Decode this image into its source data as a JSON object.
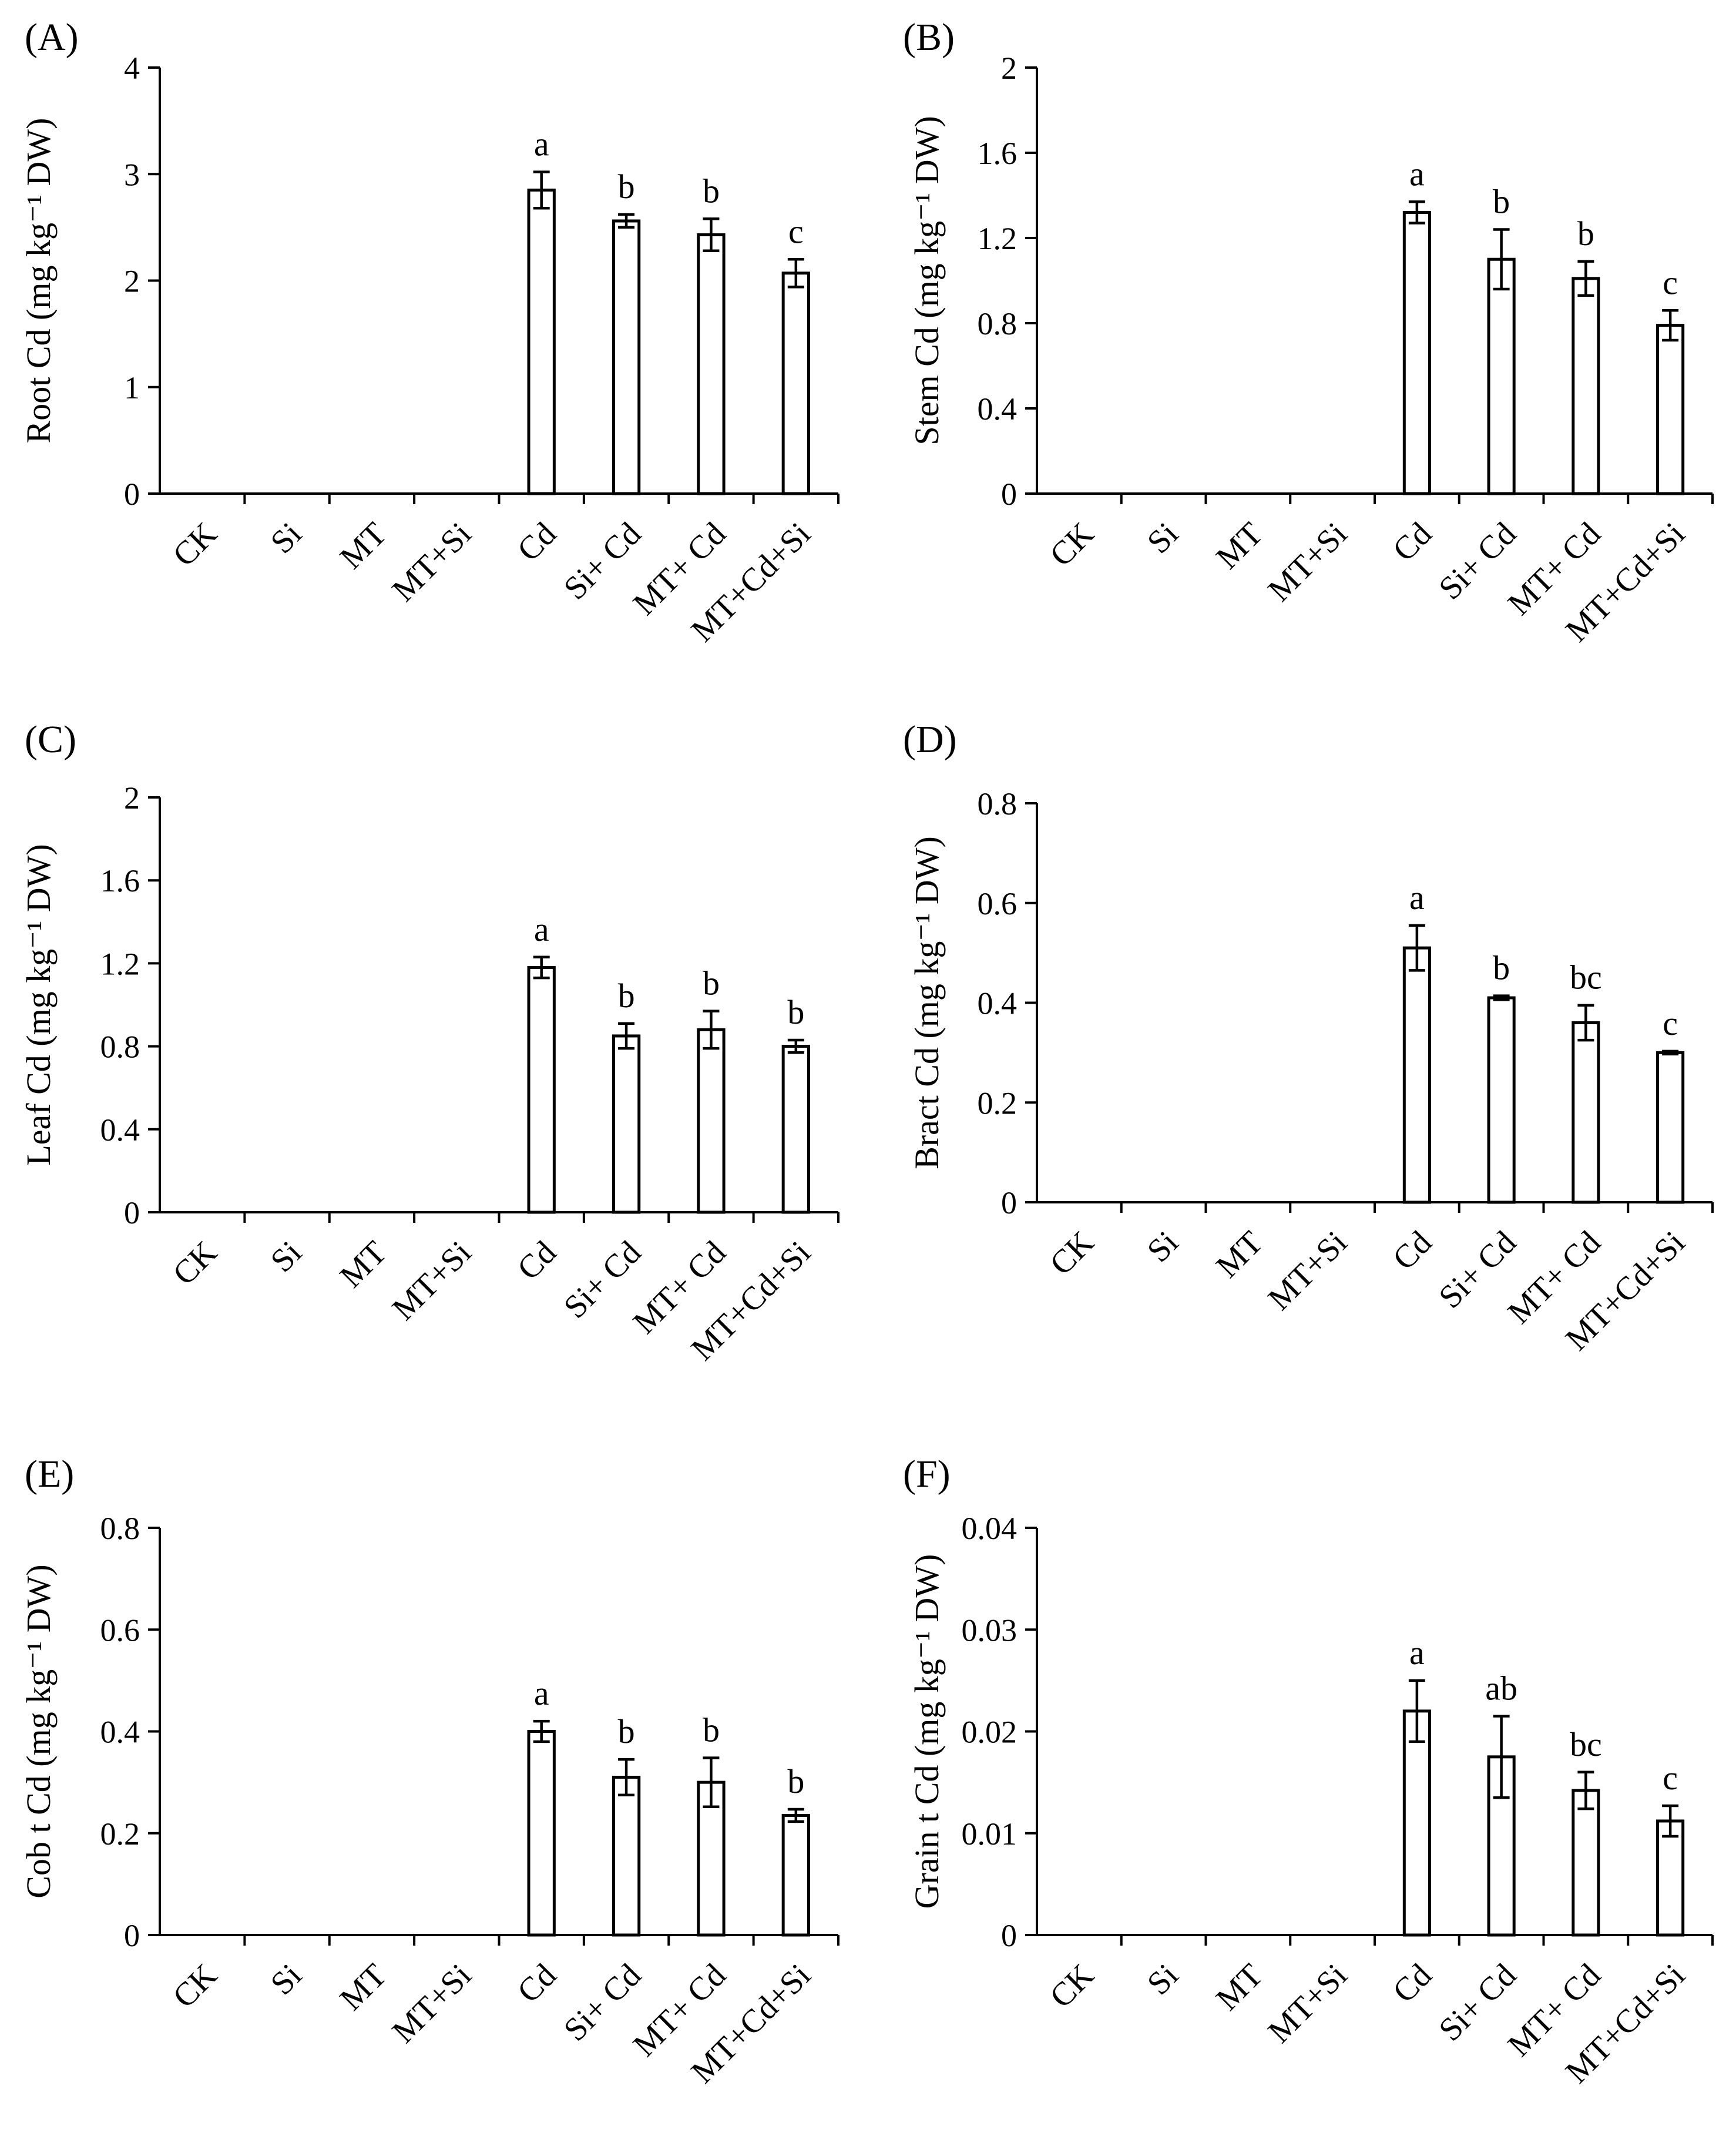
{
  "chart_data": [
    {
      "type": "bar",
      "panel_label": "(A)",
      "ylabel": "Root Cd (mg kg⁻¹ DW)",
      "ylim": [
        0,
        4
      ],
      "yticks": [
        "0",
        "1",
        "2",
        "3",
        "4"
      ],
      "categories": [
        "CK",
        "Si",
        "MT",
        "MT+Si",
        "Cd",
        "Si+ Cd",
        "MT+ Cd",
        "MT+Cd+Si"
      ],
      "values": [
        0,
        0,
        0,
        0,
        2.85,
        2.56,
        2.43,
        2.07
      ],
      "errors": [
        0,
        0,
        0,
        0,
        0.17,
        0.06,
        0.15,
        0.13
      ],
      "significance": [
        "",
        "",
        "",
        "",
        "a",
        "b",
        "b",
        "c"
      ]
    },
    {
      "type": "bar",
      "panel_label": "(B)",
      "ylabel": "Stem Cd (mg kg⁻¹ DW)",
      "ylim": [
        0,
        2
      ],
      "yticks": [
        "0",
        "0.4",
        "0.8",
        "1.2",
        "1.6",
        "2"
      ],
      "categories": [
        "CK",
        "Si",
        "MT",
        "MT+Si",
        "Cd",
        "Si+ Cd",
        "MT+ Cd",
        "MT+Cd+Si"
      ],
      "values": [
        0,
        0,
        0,
        0,
        1.32,
        1.1,
        1.01,
        0.79
      ],
      "errors": [
        0,
        0,
        0,
        0,
        0.05,
        0.14,
        0.08,
        0.07
      ],
      "significance": [
        "",
        "",
        "",
        "",
        "a",
        "b",
        "b",
        "c"
      ]
    },
    {
      "type": "bar",
      "panel_label": "(C)",
      "ylabel": "Leaf Cd (mg kg⁻¹ DW)",
      "ylim": [
        0,
        2
      ],
      "yticks": [
        "0",
        "0.4",
        "0.8",
        "1.2",
        "1.6",
        "2"
      ],
      "categories": [
        "CK",
        "Si",
        "MT",
        "MT+Si",
        "Cd",
        "Si+ Cd",
        "MT+ Cd",
        "MT+Cd+Si"
      ],
      "values": [
        0,
        0,
        0,
        0,
        1.18,
        0.85,
        0.88,
        0.8
      ],
      "errors": [
        0,
        0,
        0,
        0,
        0.05,
        0.06,
        0.09,
        0.03
      ],
      "significance": [
        "",
        "",
        "",
        "",
        "a",
        "b",
        "b",
        "b"
      ]
    },
    {
      "type": "bar",
      "panel_label": "(D)",
      "ylabel": "Bract Cd (mg kg⁻¹ DW)",
      "ylim": [
        0,
        0.8
      ],
      "yticks": [
        "0",
        "0.2",
        "0.4",
        "0.6",
        "0.8"
      ],
      "categories": [
        "CK",
        "Si",
        "MT",
        "MT+Si",
        "Cd",
        "Si+ Cd",
        "MT+ Cd",
        "MT+Cd+Si"
      ],
      "values": [
        0,
        0,
        0,
        0,
        0.51,
        0.41,
        0.36,
        0.3
      ],
      "errors": [
        0,
        0,
        0,
        0,
        0.045,
        0.004,
        0.035,
        0.003
      ],
      "significance": [
        "",
        "",
        "",
        "",
        "a",
        "b",
        "bc",
        "c"
      ]
    },
    {
      "type": "bar",
      "panel_label": "(E)",
      "ylabel": "Cob t Cd (mg kg⁻¹ DW)",
      "ylim": [
        0,
        0.8
      ],
      "yticks": [
        "0",
        "0.2",
        "0.4",
        "0.6",
        "0.8"
      ],
      "categories": [
        "CK",
        "Si",
        "MT",
        "MT+Si",
        "Cd",
        "Si+ Cd",
        "MT+ Cd",
        "MT+Cd+Si"
      ],
      "values": [
        0,
        0,
        0,
        0,
        0.4,
        0.31,
        0.3,
        0.235
      ],
      "errors": [
        0,
        0,
        0,
        0,
        0.02,
        0.035,
        0.048,
        0.012
      ],
      "significance": [
        "",
        "",
        "",
        "",
        "a",
        "b",
        "b",
        "b"
      ]
    },
    {
      "type": "bar",
      "panel_label": "(F)",
      "ylabel": "Grain t Cd (mg kg⁻¹ DW)",
      "ylim": [
        0,
        0.04
      ],
      "yticks": [
        "0",
        "0.01",
        "0.02",
        "0.03",
        "0.04"
      ],
      "categories": [
        "CK",
        "Si",
        "MT",
        "MT+Si",
        "Cd",
        "Si+ Cd",
        "MT+ Cd",
        "MT+Cd+Si"
      ],
      "values": [
        0,
        0,
        0,
        0,
        0.022,
        0.0175,
        0.0142,
        0.0112
      ],
      "errors": [
        0,
        0,
        0,
        0,
        0.003,
        0.004,
        0.0018,
        0.0015
      ],
      "significance": [
        "",
        "",
        "",
        "",
        "a",
        "ab",
        "bc",
        "c"
      ]
    }
  ]
}
